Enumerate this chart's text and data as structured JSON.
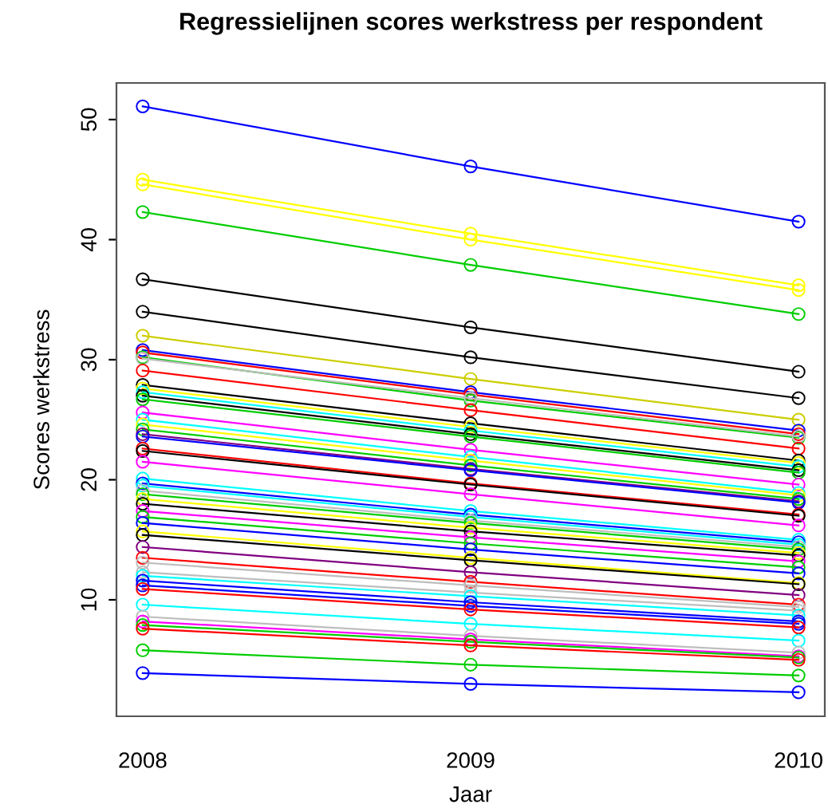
{
  "chart_data": {
    "type": "line",
    "title": "Regressielijnen scores werkstress per respondent",
    "xlabel": "Jaar",
    "ylabel": "Scores werkstress",
    "x": [
      2008,
      2009,
      2010
    ],
    "xlim": [
      2007.92,
      2010.08
    ],
    "xticks": [
      2008,
      2009,
      2010
    ],
    "ylim": [
      0.3,
      53.05
    ],
    "yticks": [
      10,
      20,
      30,
      40,
      50
    ],
    "grid": false,
    "legend": false,
    "marker": "circle",
    "line_style": "solid",
    "series": [
      {
        "color": "#0000ff",
        "values": [
          51.1,
          46.1,
          41.5
        ]
      },
      {
        "color": "#ffff00",
        "values": [
          45.0,
          40.5,
          36.2
        ]
      },
      {
        "color": "#ffff00",
        "values": [
          44.6,
          40.0,
          35.8
        ]
      },
      {
        "color": "#00cd00",
        "values": [
          42.3,
          37.9,
          33.8
        ]
      },
      {
        "color": "#000000",
        "values": [
          36.7,
          32.7,
          29.0
        ]
      },
      {
        "color": "#000000",
        "values": [
          34.0,
          30.2,
          26.8
        ]
      },
      {
        "color": "#cdcd00",
        "values": [
          32.0,
          28.4,
          25.0
        ]
      },
      {
        "color": "#0000ff",
        "values": [
          30.8,
          27.3,
          24.1
        ]
      },
      {
        "color": "#ff0000",
        "values": [
          30.6,
          27.1,
          23.8
        ]
      },
      {
        "color": "#00cd00",
        "values": [
          30.2,
          26.6,
          23.5
        ]
      },
      {
        "color": "#bebebe",
        "values": [
          30.1,
          26.8,
          23.6
        ]
      },
      {
        "color": "#ff0000",
        "values": [
          29.1,
          25.8,
          22.6
        ]
      },
      {
        "color": "#000000",
        "values": [
          27.9,
          24.7,
          21.6
        ]
      },
      {
        "color": "#ffff00",
        "values": [
          27.6,
          24.4,
          21.4
        ]
      },
      {
        "color": "#00ffff",
        "values": [
          27.3,
          24.1,
          21.1
        ]
      },
      {
        "color": "#000000",
        "values": [
          27.0,
          23.8,
          20.8
        ]
      },
      {
        "color": "#00cd00",
        "values": [
          26.7,
          23.6,
          20.6
        ]
      },
      {
        "color": "#ff00ff",
        "values": [
          25.6,
          22.5,
          19.6
        ]
      },
      {
        "color": "#00ffff",
        "values": [
          25.0,
          21.9,
          18.9
        ]
      },
      {
        "color": "#ffff00",
        "values": [
          24.6,
          21.6,
          18.7
        ]
      },
      {
        "color": "#00cd00",
        "values": [
          24.2,
          21.2,
          18.4
        ]
      },
      {
        "color": "#800080",
        "values": [
          23.8,
          20.9,
          18.2
        ]
      },
      {
        "color": "#0000ff",
        "values": [
          23.6,
          20.8,
          18.1
        ]
      },
      {
        "color": "#ff0000",
        "values": [
          22.6,
          19.7,
          17.1
        ]
      },
      {
        "color": "#000000",
        "values": [
          22.4,
          19.6,
          17.0
        ]
      },
      {
        "color": "#ff00ff",
        "values": [
          21.5,
          18.8,
          16.2
        ]
      },
      {
        "color": "#00ffff",
        "values": [
          20.1,
          17.4,
          15.0
        ]
      },
      {
        "color": "#0000ff",
        "values": [
          19.7,
          17.1,
          14.8
        ]
      },
      {
        "color": "#00ffff",
        "values": [
          19.5,
          16.9,
          14.6
        ]
      },
      {
        "color": "#bebebe",
        "values": [
          19.1,
          16.6,
          14.4
        ]
      },
      {
        "color": "#00cd00",
        "values": [
          18.8,
          16.4,
          14.2
        ]
      },
      {
        "color": "#ffff00",
        "values": [
          18.4,
          16.0,
          13.9
        ]
      },
      {
        "color": "#000000",
        "values": [
          18.0,
          15.7,
          13.7
        ]
      },
      {
        "color": "#ff00ff",
        "values": [
          17.4,
          15.2,
          13.2
        ]
      },
      {
        "color": "#00cd00",
        "values": [
          16.9,
          14.7,
          12.7
        ]
      },
      {
        "color": "#0000ff",
        "values": [
          16.4,
          14.2,
          12.2
        ]
      },
      {
        "color": "#ffff00",
        "values": [
          15.7,
          13.5,
          11.4
        ]
      },
      {
        "color": "#000000",
        "values": [
          15.4,
          13.3,
          11.3
        ]
      },
      {
        "color": "#800080",
        "values": [
          14.4,
          12.3,
          10.4
        ]
      },
      {
        "color": "#ff0000",
        "values": [
          13.5,
          11.5,
          9.6
        ]
      },
      {
        "color": "#bebebe",
        "values": [
          13.1,
          11.2,
          9.4
        ]
      },
      {
        "color": "#bebebe",
        "values": [
          12.3,
          10.6,
          9.1
        ]
      },
      {
        "color": "#00ffff",
        "values": [
          12.0,
          10.3,
          8.7
        ]
      },
      {
        "color": "#0000ff",
        "values": [
          11.6,
          9.8,
          8.2
        ]
      },
      {
        "color": "#0000ff",
        "values": [
          11.2,
          9.5,
          8.0
        ]
      },
      {
        "color": "#ff0000",
        "values": [
          10.9,
          9.2,
          7.7
        ]
      },
      {
        "color": "#00ffff",
        "values": [
          9.6,
          8.0,
          6.6
        ]
      },
      {
        "color": "#bebebe",
        "values": [
          8.6,
          7.0,
          5.6
        ]
      },
      {
        "color": "#ff00ff",
        "values": [
          8.2,
          6.7,
          5.3
        ]
      },
      {
        "color": "#00cd00",
        "values": [
          7.9,
          6.5,
          5.2
        ]
      },
      {
        "color": "#ff0000",
        "values": [
          7.6,
          6.2,
          5.0
        ]
      },
      {
        "color": "#00cd00",
        "values": [
          5.8,
          4.6,
          3.7
        ]
      },
      {
        "color": "#0000ff",
        "values": [
          3.9,
          3.0,
          2.3
        ]
      }
    ]
  }
}
